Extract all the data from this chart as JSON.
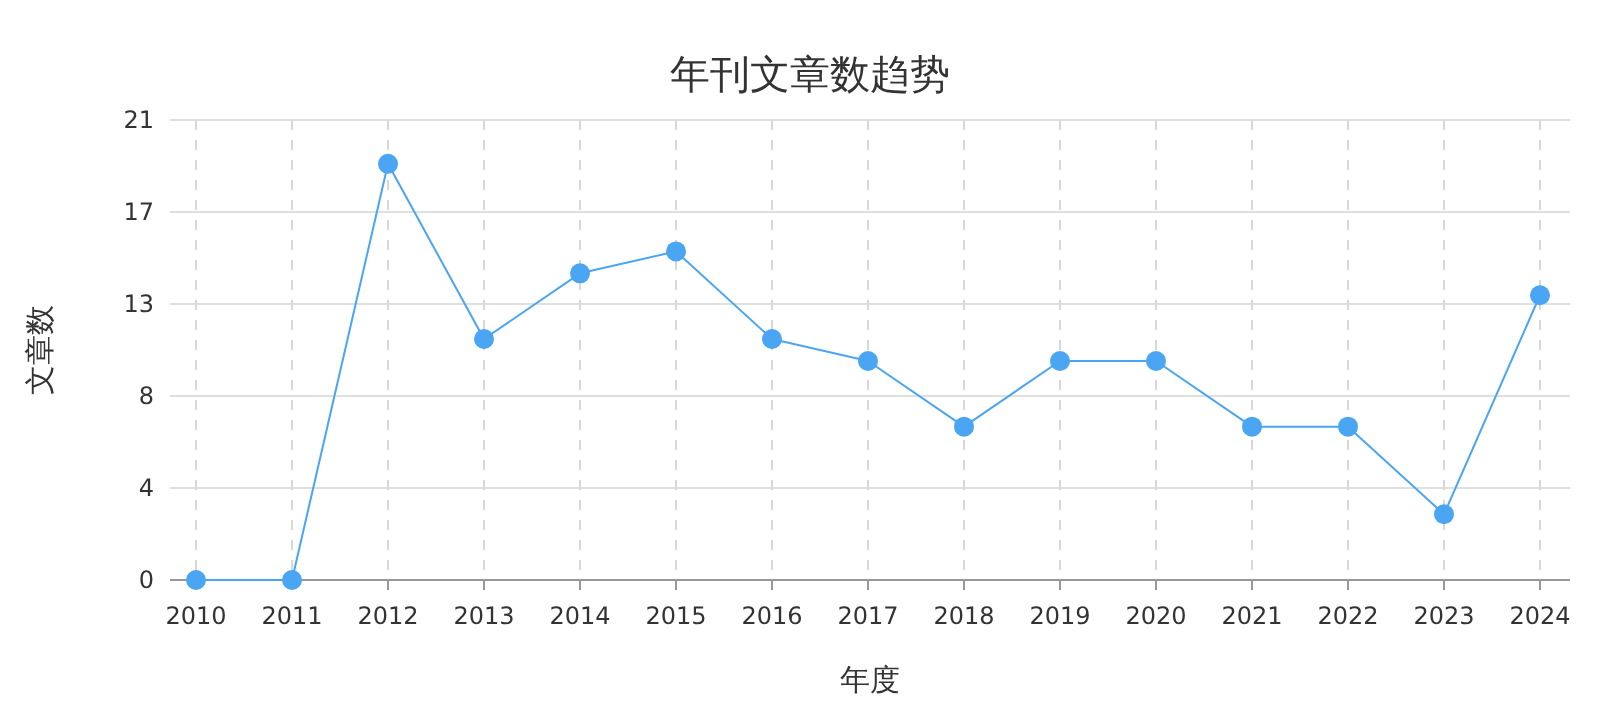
{
  "chart_data": {
    "type": "line",
    "title": "年刊文章数趋势",
    "xlabel": "年度",
    "ylabel": "文章数",
    "categories": [
      "2010",
      "2011",
      "2012",
      "2013",
      "2014",
      "2015",
      "2016",
      "2017",
      "2018",
      "2019",
      "2020",
      "2021",
      "2022",
      "2023",
      "2024"
    ],
    "series": [
      {
        "color": "#4aa5f2",
        "values": [
          0,
          0,
          19,
          11,
          14,
          15,
          11,
          10,
          7,
          10,
          10,
          7,
          7,
          3,
          13
        ]
      }
    ],
    "ylim": [
      0,
      21
    ],
    "yticks": [
      0,
      {
        "value": 4.2,
        "label": "4"
      },
      {
        "value": 8.4,
        "label": "8"
      },
      {
        "value": 12.6,
        "label": "13"
      },
      {
        "value": 16.8,
        "label": "17"
      },
      21
    ],
    "grid": true,
    "marker": "circle",
    "line_style": "solid"
  }
}
